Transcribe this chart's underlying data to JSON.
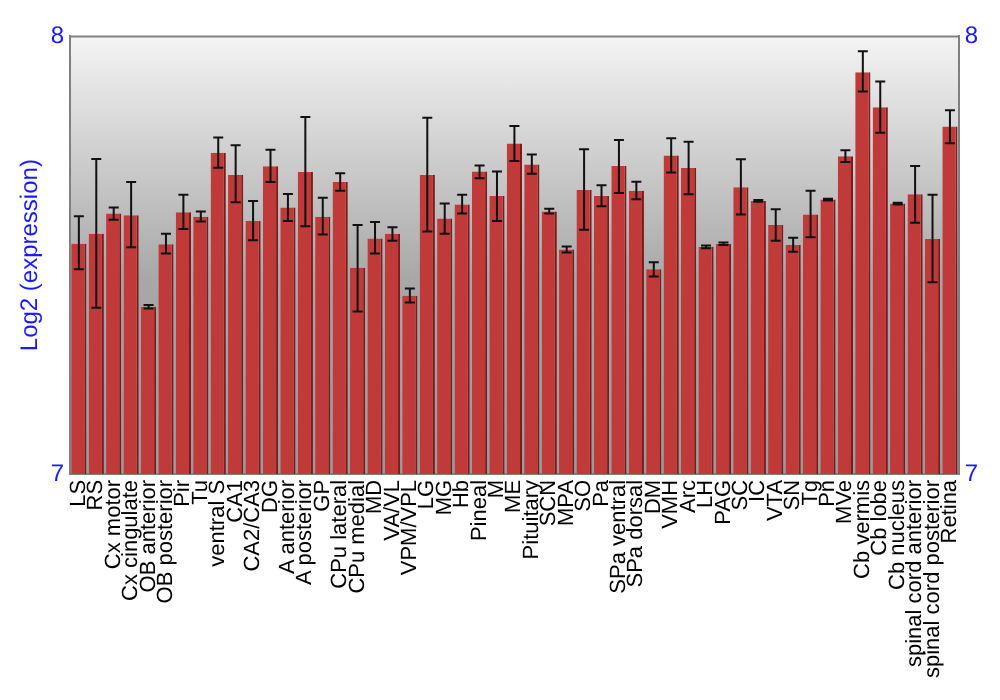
{
  "chart_data": {
    "type": "bar",
    "ylabel": "Log2 (expression)",
    "categories": [
      "LS",
      "RS",
      "Cx motor",
      "Cx cingulate",
      "OB anterior",
      "OB posterior",
      "Pir",
      "Tu",
      "ventral S",
      "CA1",
      "CA2/CA3",
      "DG",
      "A anterior",
      "A posterior",
      "GP",
      "CPu lateral",
      "CPu medial",
      "MD",
      "VA/VL",
      "VPM/VPL",
      "LG",
      "MG",
      "Hb",
      "Pineal",
      "M",
      "ME",
      "Pituitary",
      "SCN",
      "MPA",
      "SO",
      "Pa",
      "SPa ventral",
      "SPa dorsal",
      "DM",
      "VMH",
      "Arc",
      "LH",
      "PAG",
      "SC",
      "IC",
      "VTA",
      "SN",
      "Tg",
      "Pn",
      "MVe",
      "Cb vermis",
      "Cb lobe",
      "Cb nucleus",
      "spinal cord anterior",
      "spinal cord posterior",
      "Retina"
    ],
    "values": [
      7.526,
      7.549,
      7.595,
      7.591,
      7.382,
      7.525,
      7.598,
      7.588,
      7.734,
      7.683,
      7.578,
      7.703,
      7.609,
      7.69,
      7.588,
      7.667,
      7.471,
      7.538,
      7.549,
      7.407,
      7.683,
      7.584,
      7.616,
      7.691,
      7.635,
      7.755,
      7.707,
      7.6,
      7.513,
      7.649,
      7.635,
      7.704,
      7.647,
      7.468,
      7.728,
      7.699,
      7.519,
      7.526,
      7.655,
      7.624,
      7.569,
      7.523,
      7.593,
      7.627,
      7.726,
      7.918,
      7.838,
      7.618,
      7.639,
      7.537,
      7.794
    ],
    "errors": [
      [
        7.468,
        7.589
      ],
      [
        7.38,
        7.72
      ],
      [
        7.581,
        7.609
      ],
      [
        7.518,
        7.667
      ],
      [
        7.378,
        7.386
      ],
      [
        7.504,
        7.549
      ],
      [
        7.56,
        7.638
      ],
      [
        7.577,
        7.6
      ],
      [
        7.7,
        7.769
      ],
      [
        7.621,
        7.751
      ],
      [
        7.534,
        7.624
      ],
      [
        7.667,
        7.741
      ],
      [
        7.578,
        7.64
      ],
      [
        7.566,
        7.816
      ],
      [
        7.547,
        7.631
      ],
      [
        7.647,
        7.687
      ],
      [
        7.371,
        7.569
      ],
      [
        7.504,
        7.576
      ],
      [
        7.533,
        7.564
      ],
      [
        7.392,
        7.424
      ],
      [
        7.554,
        7.814
      ],
      [
        7.549,
        7.618
      ],
      [
        7.595,
        7.638
      ],
      [
        7.676,
        7.705
      ],
      [
        7.578,
        7.691
      ],
      [
        7.715,
        7.795
      ],
      [
        7.686,
        7.73
      ],
      [
        7.595,
        7.606
      ],
      [
        7.506,
        7.52
      ],
      [
        7.558,
        7.742
      ],
      [
        7.612,
        7.66
      ],
      [
        7.642,
        7.763
      ],
      [
        7.628,
        7.668
      ],
      [
        7.451,
        7.484
      ],
      [
        7.689,
        7.767
      ],
      [
        7.639,
        7.759
      ],
      [
        7.516,
        7.522
      ],
      [
        7.523,
        7.529
      ],
      [
        7.593,
        7.719
      ],
      [
        7.622,
        7.626
      ],
      [
        7.533,
        7.605
      ],
      [
        7.508,
        7.54
      ],
      [
        7.541,
        7.647
      ],
      [
        7.625,
        7.629
      ],
      [
        7.713,
        7.74
      ],
      [
        7.874,
        7.966
      ],
      [
        7.78,
        7.897
      ],
      [
        7.616,
        7.62
      ],
      [
        7.574,
        7.704
      ],
      [
        7.438,
        7.638
      ],
      [
        7.756,
        7.831
      ]
    ],
    "color": "#c03a3a",
    "ylim": [
      7,
      8
    ],
    "yticks": [
      7,
      8
    ],
    "y2lim": [
      7,
      8
    ],
    "y2ticks": [
      7,
      8
    ],
    "grid": false,
    "legend": false
  }
}
